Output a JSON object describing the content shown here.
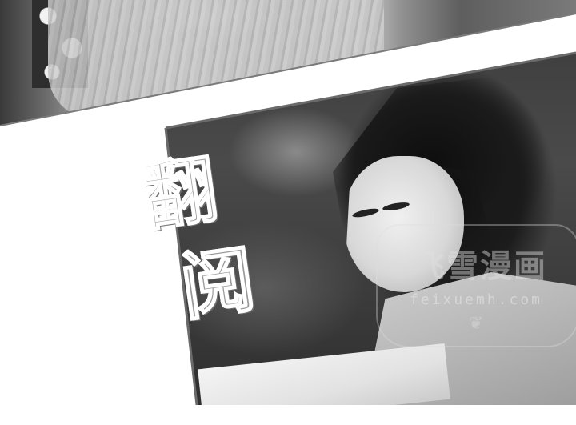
{
  "comic_page": {
    "panels": [
      {
        "name": "top-panel",
        "description_visible": ""
      },
      {
        "name": "reading-panel",
        "description_visible": ""
      }
    ],
    "title_chars": [
      "翻",
      "阅"
    ],
    "watermark": {
      "logo_text": "飞雪漫画",
      "url_text": "feixuemh.com",
      "ornament": "❦"
    },
    "colors": {
      "background": "#ffffff",
      "title_fill": "#9a9a9a",
      "title_outline": "#ffffff"
    }
  }
}
